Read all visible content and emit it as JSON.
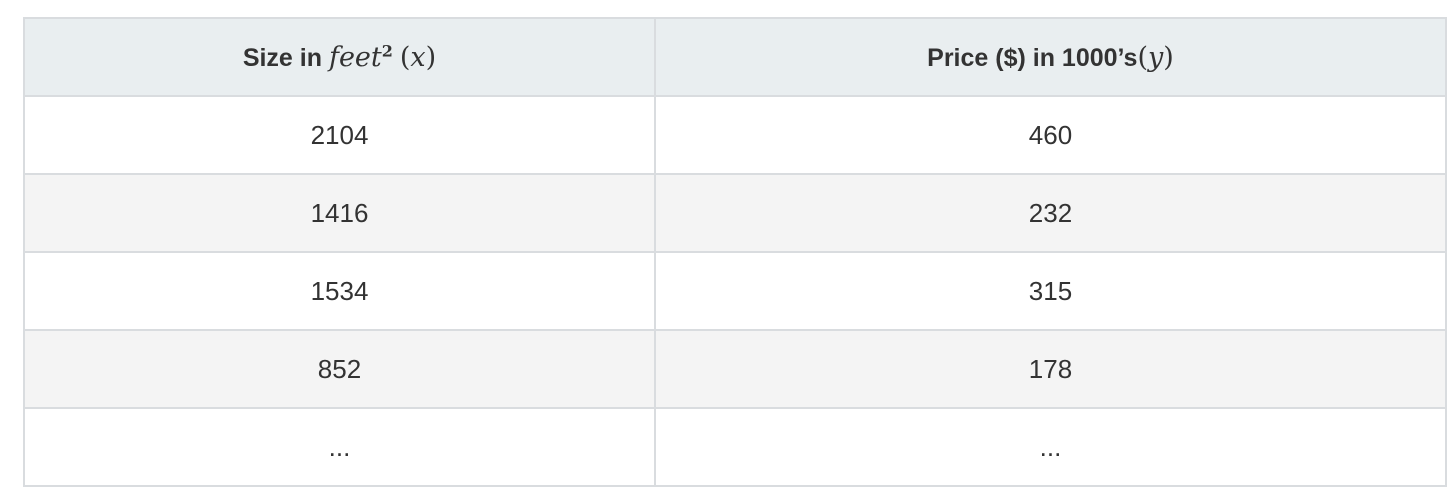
{
  "table": {
    "header": {
      "col1": {
        "prefix": "Size in ",
        "var_name": "feet",
        "exponent": "2",
        "open_paren": "(",
        "var": "x",
        "close_paren": ")"
      },
      "col2": {
        "prefix": "Price ($) in 1000’s",
        "open_paren": "(",
        "var": "y",
        "close_paren": ")"
      }
    },
    "rows": [
      {
        "size": "2104",
        "price": "460"
      },
      {
        "size": "1416",
        "price": "232"
      },
      {
        "size": "1534",
        "price": "315"
      },
      {
        "size": "852",
        "price": "178"
      },
      {
        "size": "...",
        "price": "..."
      }
    ],
    "colors": {
      "header_bg": "#e9eef0",
      "border": "#d9dcdf",
      "stripe_bg": "#f4f4f4",
      "text": "#333333"
    }
  }
}
